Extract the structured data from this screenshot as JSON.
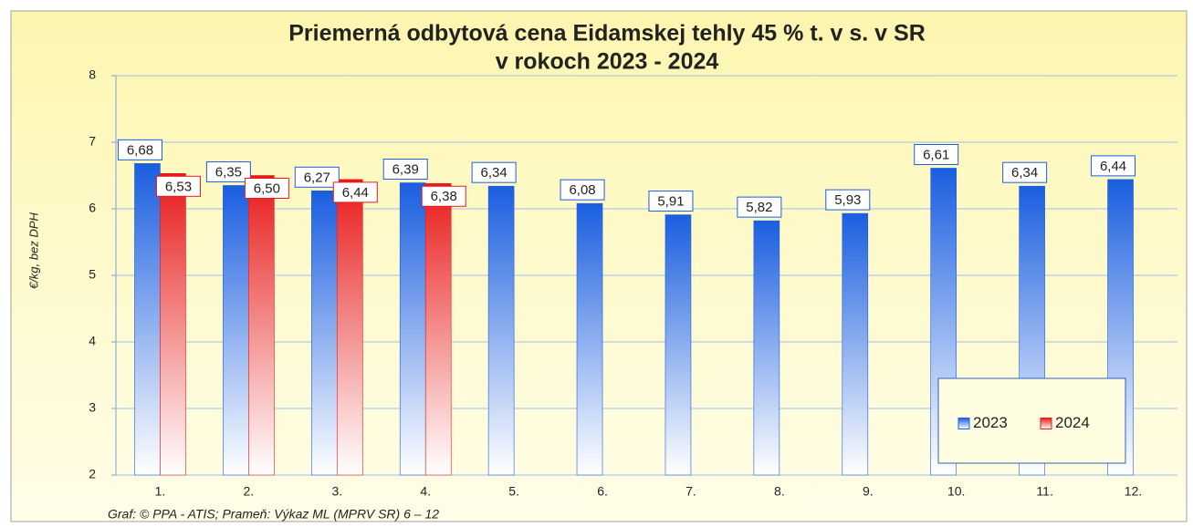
{
  "chart_data": {
    "type": "bar",
    "title": "Priemerná odbytová cena Eidamskej tehly 45 % t. v s. v SR",
    "subtitle": "v rokoch 2023 - 2024",
    "y_label": "€/kg,  bez DPH",
    "source": "Graf: © PPA - ATIS; Prameň: Výkaz ML (MPRV SR) 6 – 12",
    "categories": [
      "1.",
      "2.",
      "3.",
      "4.",
      "5.",
      "6.",
      "7.",
      "8.",
      "9.",
      "10.",
      "11.",
      "12."
    ],
    "series": [
      {
        "name": "2023",
        "color": "#1a5ee0",
        "values": [
          6.68,
          6.35,
          6.27,
          6.39,
          6.34,
          6.08,
          5.91,
          5.82,
          5.93,
          6.61,
          6.34,
          6.44
        ],
        "value_labels": [
          "6,68",
          "6,35",
          "6,27",
          "6,39",
          "6,34",
          "6,08",
          "5,91",
          "5,82",
          "5,93",
          "6,61",
          "6,34",
          "6,44"
        ]
      },
      {
        "name": "2024",
        "color": "#e81a1a",
        "values": [
          6.53,
          6.5,
          6.44,
          6.38,
          null,
          null,
          null,
          null,
          null,
          null,
          null,
          null
        ],
        "value_labels": [
          "6,53",
          "6,50",
          "6,44",
          "6,38",
          null,
          null,
          null,
          null,
          null,
          null,
          null,
          null
        ]
      }
    ],
    "ylim": [
      2,
      8
    ],
    "yticks": [
      2,
      3,
      4,
      5,
      6,
      7,
      8
    ],
    "grid": true,
    "legend": "lower right"
  }
}
